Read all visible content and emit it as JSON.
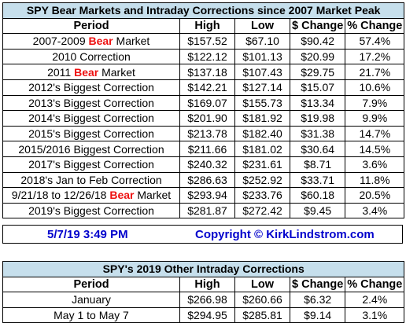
{
  "table1": {
    "title": "SPY Bear Markets and Intraday Corrections since 2007 Market Peak",
    "headers": [
      "Period",
      "High",
      "Low",
      "$ Change",
      "% Change"
    ],
    "rows": [
      {
        "pre": "2007-2009 ",
        "bear": "Bear",
        "post": " Market",
        "high": "$157.52",
        "low": "$67.10",
        "change": "$90.42",
        "pct": "57.4%"
      },
      {
        "pre": "2010 Correction",
        "bear": "",
        "post": "",
        "high": "$122.12",
        "low": "$101.13",
        "change": "$20.99",
        "pct": "17.2%"
      },
      {
        "pre": "2011 ",
        "bear": "Bear",
        "post": " Market",
        "high": "$137.18",
        "low": "$107.43",
        "change": "$29.75",
        "pct": "21.7%"
      },
      {
        "pre": "2012's Biggest Correction",
        "bear": "",
        "post": "",
        "high": "$142.21",
        "low": "$127.14",
        "change": "$15.07",
        "pct": "10.6%"
      },
      {
        "pre": "2013's Biggest Correction",
        "bear": "",
        "post": "",
        "high": "$169.07",
        "low": "$155.73",
        "change": "$13.34",
        "pct": "7.9%"
      },
      {
        "pre": "2014's Biggest Correction",
        "bear": "",
        "post": "",
        "high": "$201.90",
        "low": "$181.92",
        "change": "$19.98",
        "pct": "9.9%"
      },
      {
        "pre": "2015's Biggest Correction",
        "bear": "",
        "post": "",
        "high": "$213.78",
        "low": "$182.40",
        "change": "$31.38",
        "pct": "14.7%"
      },
      {
        "pre": "2015/2016 Biggest Correction",
        "bear": "",
        "post": "",
        "high": "$211.66",
        "low": "$181.02",
        "change": "$30.64",
        "pct": "14.5%"
      },
      {
        "pre": "2017's Biggest Correction",
        "bear": "",
        "post": "",
        "high": "$240.32",
        "low": "$231.61",
        "change": "$8.71",
        "pct": "3.6%"
      },
      {
        "pre": "2018's Jan to Feb Correction",
        "bear": "",
        "post": "",
        "high": "$286.63",
        "low": "$252.92",
        "change": "$33.71",
        "pct": "11.8%"
      },
      {
        "pre": "9/21/18 to 12/26/18 ",
        "bear": "Bear",
        "post": " Market",
        "high": "$293.94",
        "low": "$233.76",
        "change": "$60.18",
        "pct": "20.5%"
      },
      {
        "pre": "2019's Biggest Correction",
        "bear": "",
        "post": "",
        "high": "$281.87",
        "low": "$272.42",
        "change": "$9.45",
        "pct": "3.4%"
      }
    ]
  },
  "footer": {
    "date": "5/7/19 3:49 PM",
    "copyright": "Copyright © KirkLindstrom.com"
  },
  "table2": {
    "title": "SPY's 2019 Other Intraday Corrections",
    "headers": [
      "Period",
      "High",
      "Low",
      "$ Change",
      "% Change"
    ],
    "rows": [
      {
        "pre": "January",
        "bear": "",
        "post": "",
        "high": "$266.98",
        "low": "$260.66",
        "change": "$6.32",
        "pct": "2.4%"
      },
      {
        "pre": "May 1 to May 7",
        "bear": "",
        "post": "",
        "high": "$294.95",
        "low": "$285.81",
        "change": "$9.14",
        "pct": "3.1%"
      }
    ]
  },
  "colors": {
    "title_bg": "#c6dfec",
    "bear_text": "#ee1111",
    "footer_text": "#0000cc"
  }
}
